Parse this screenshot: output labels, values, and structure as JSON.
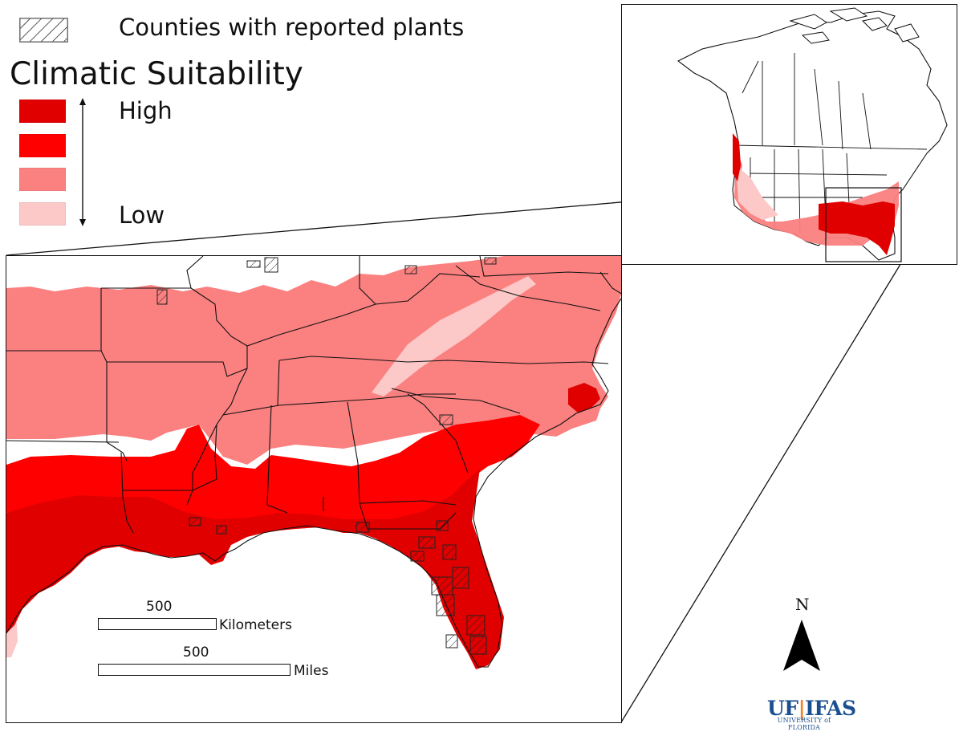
{
  "legend": {
    "reported_label": "Counties with reported plants",
    "title": "Climatic Suitability",
    "high_label": "High",
    "low_label": "Low",
    "classes": [
      {
        "level": "high",
        "color": "#e00000"
      },
      {
        "level": "medium-high",
        "color": "#ff0000"
      },
      {
        "level": "medium-low",
        "color": "#fb8080"
      },
      {
        "level": "low",
        "color": "#fcc8c8"
      }
    ],
    "hatch_symbol": "diagonal-hatch"
  },
  "scale": {
    "km_value": "500",
    "km_unit": "Kilometers",
    "mi_value": "500",
    "mi_unit": "Miles"
  },
  "north_arrow": {
    "label": "N",
    "icon": "north-arrow-icon"
  },
  "logo": {
    "left": "UF",
    "right": "IFAS",
    "sub": "UNIVERSITY of FLORIDA",
    "color": "#1a4f8f"
  },
  "maps": {
    "main": {
      "region": "Southeastern United States"
    },
    "inset": {
      "region": "North America"
    }
  }
}
